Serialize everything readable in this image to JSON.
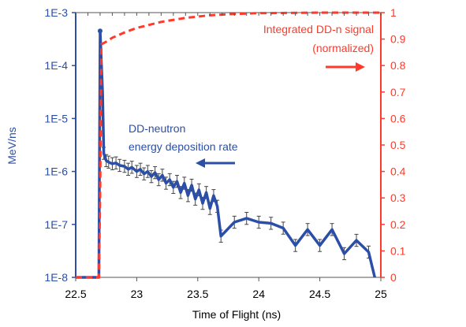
{
  "chart_data": {
    "type": "line",
    "xlabel": "Time of Flight (ns)",
    "ylabel": "MeV/ns",
    "x_ticks": [
      "22.5",
      "23",
      "23.5",
      "24",
      "24.5",
      "25"
    ],
    "xlim": [
      22.5,
      25
    ],
    "y_left": {
      "scale": "log",
      "range": [
        1e-08,
        0.001
      ],
      "ticks": [
        "1E-8",
        "1E-7",
        "1E-6",
        "1E-5",
        "1E-4",
        "1E-3"
      ],
      "color": "#2b4fa8"
    },
    "y_right": {
      "scale": "linear",
      "range": [
        0,
        1
      ],
      "ticks": [
        "0",
        "0.1",
        "0.2",
        "0.3",
        "0.4",
        "0.5",
        "0.6",
        "0.7",
        "0.8",
        "0.9",
        "1"
      ],
      "color": "#ff3a2a"
    },
    "annotations": {
      "blue_label_line1": "DD-neutron",
      "blue_label_line2": "energy deposition rate",
      "red_label_line1": "Integrated DD-n signal",
      "red_label_line2": "(normalized)"
    },
    "series": [
      {
        "axis": "left",
        "color": "#2b4fa8",
        "error_bars": true,
        "points": [
          [
            22.5,
            1e-08
          ],
          [
            22.69,
            1e-08
          ],
          [
            22.7,
            0.00045
          ],
          [
            22.72,
            3e-05
          ],
          [
            22.73,
            2.2e-06
          ],
          [
            22.75,
            1.6e-06
          ],
          [
            22.77,
            1.5e-06
          ],
          [
            22.8,
            1.4e-06
          ],
          [
            22.83,
            1.45e-06
          ],
          [
            22.86,
            1.3e-06
          ],
          [
            22.9,
            1.25e-06
          ],
          [
            22.93,
            1.1e-06
          ],
          [
            22.96,
            1.2e-06
          ],
          [
            23.0,
            1e-06
          ],
          [
            23.03,
            1.1e-06
          ],
          [
            23.06,
            9e-07
          ],
          [
            23.09,
            1e-06
          ],
          [
            23.12,
            8e-07
          ],
          [
            23.15,
            9.5e-07
          ],
          [
            23.18,
            7e-07
          ],
          [
            23.21,
            8.5e-07
          ],
          [
            23.24,
            6e-07
          ],
          [
            23.27,
            7e-07
          ],
          [
            23.3,
            5e-07
          ],
          [
            23.33,
            6.5e-07
          ],
          [
            23.36,
            4e-07
          ],
          [
            23.39,
            6e-07
          ],
          [
            23.42,
            3.5e-07
          ],
          [
            23.45,
            5.5e-07
          ],
          [
            23.48,
            3e-07
          ],
          [
            23.51,
            4.5e-07
          ],
          [
            23.54,
            2.5e-07
          ],
          [
            23.57,
            4e-07
          ],
          [
            23.6,
            2e-07
          ],
          [
            23.63,
            3.5e-07
          ],
          [
            23.66,
            2.2e-07
          ],
          [
            23.69,
            6e-08
          ],
          [
            23.8,
            1.1e-07
          ],
          [
            23.9,
            1.3e-07
          ],
          [
            24.0,
            1.1e-07
          ],
          [
            24.1,
            1.05e-07
          ],
          [
            24.2,
            8.5e-08
          ],
          [
            24.3,
            4e-08
          ],
          [
            24.4,
            8e-08
          ],
          [
            24.5,
            4e-08
          ],
          [
            24.6,
            8e-08
          ],
          [
            24.7,
            2.8e-08
          ],
          [
            24.8,
            5e-08
          ],
          [
            24.9,
            3e-08
          ],
          [
            24.95,
            1e-08
          ]
        ]
      },
      {
        "axis": "right",
        "color": "#ff3a2a",
        "dashed": true,
        "points": [
          [
            22.5,
            0
          ],
          [
            22.69,
            0
          ],
          [
            22.7,
            0.3
          ],
          [
            22.71,
            0.88
          ],
          [
            22.75,
            0.89
          ],
          [
            22.8,
            0.905
          ],
          [
            22.9,
            0.925
          ],
          [
            23.0,
            0.942
          ],
          [
            23.2,
            0.965
          ],
          [
            23.4,
            0.98
          ],
          [
            23.6,
            0.99
          ],
          [
            23.8,
            0.995
          ],
          [
            24.0,
            0.998
          ],
          [
            24.5,
            1.0
          ],
          [
            25.0,
            1.0
          ]
        ]
      }
    ]
  }
}
